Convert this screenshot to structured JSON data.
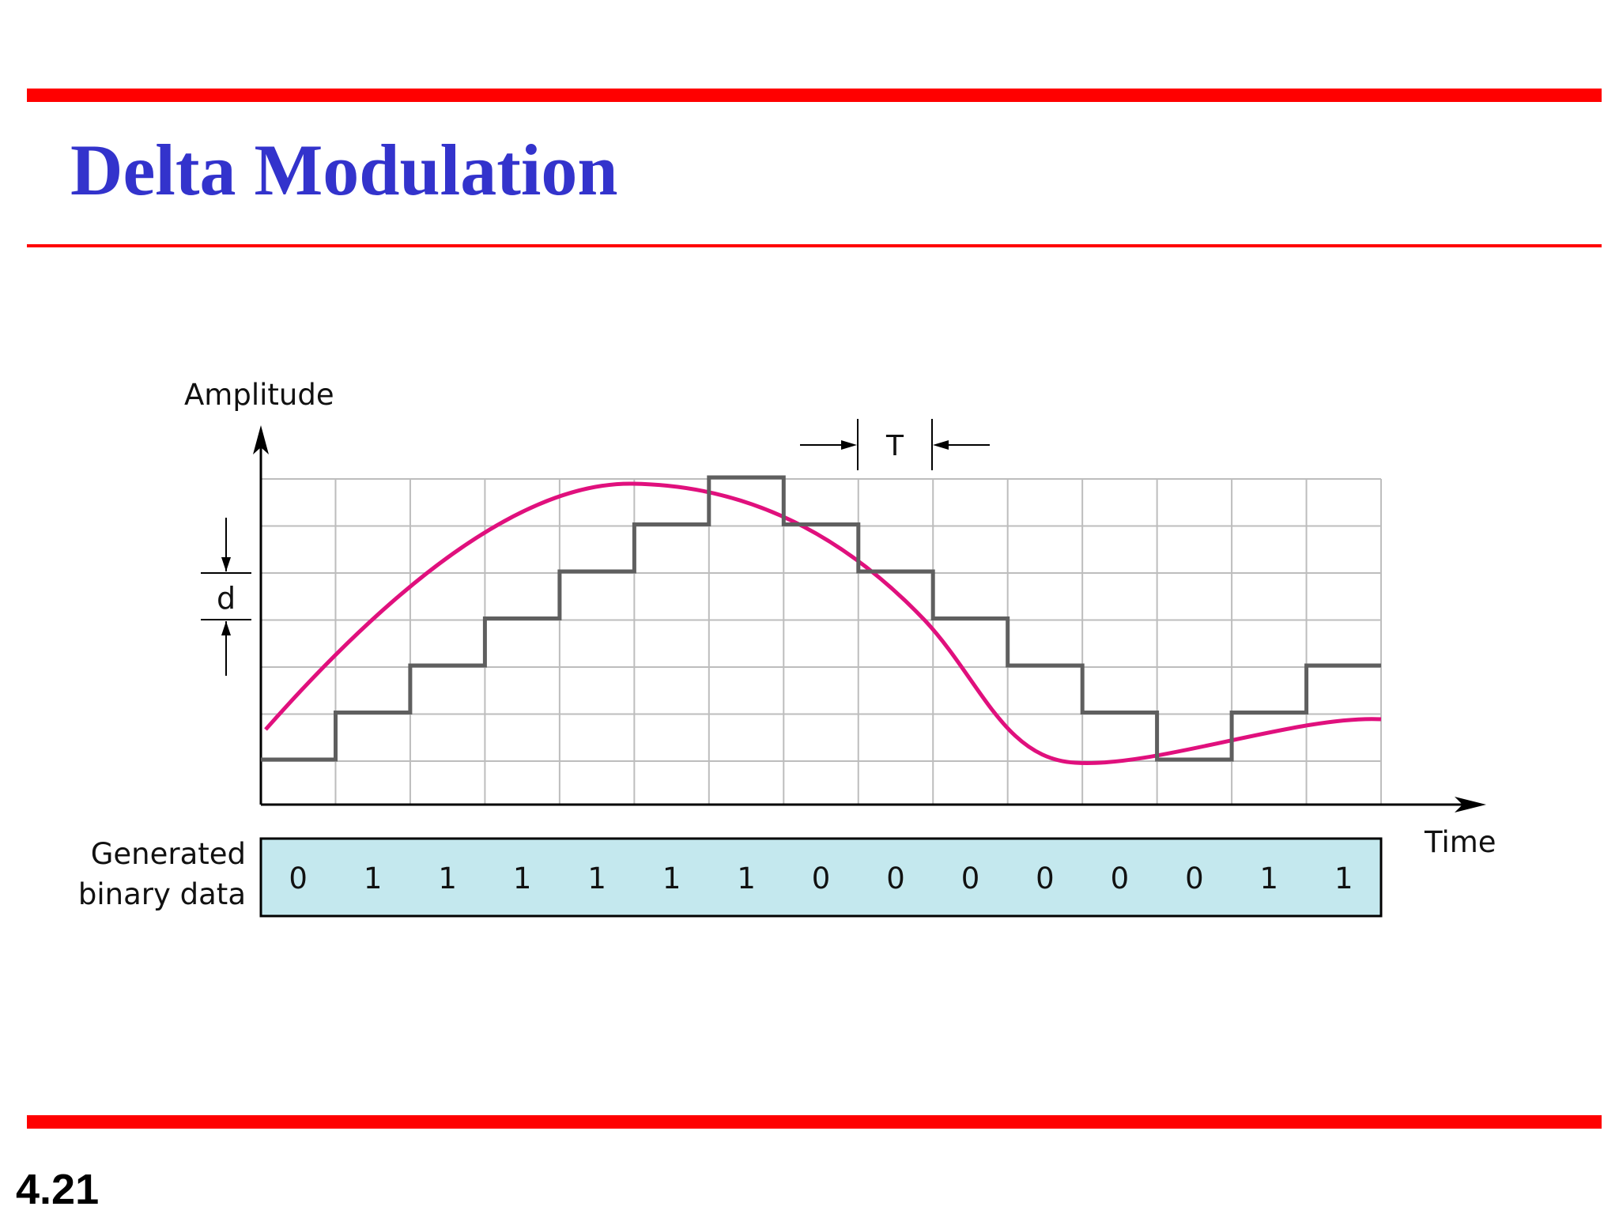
{
  "slide": {
    "title": "Delta Modulation",
    "number": "4.21"
  },
  "figure": {
    "y_axis_label": "Amplitude",
    "x_axis_label": "Time",
    "step_label": "d",
    "period_label": "T",
    "binary_label_line1": "Generated",
    "binary_label_line2": "binary data",
    "binary_data": [
      "0",
      "1",
      "1",
      "1",
      "1",
      "1",
      "1",
      "0",
      "0",
      "0",
      "0",
      "0",
      "0",
      "1",
      "1"
    ],
    "staircase_levels": [
      0,
      1,
      2,
      3,
      4,
      5,
      6,
      5,
      4,
      3,
      2,
      1,
      0,
      1,
      2
    ],
    "colors": {
      "signal": "#e0107d",
      "staircase": "#5f5f5f",
      "grid": "#bdbdbd",
      "binary_box": "#c4e8ee",
      "rules": "#ff0000",
      "title": "#3333cc"
    }
  }
}
